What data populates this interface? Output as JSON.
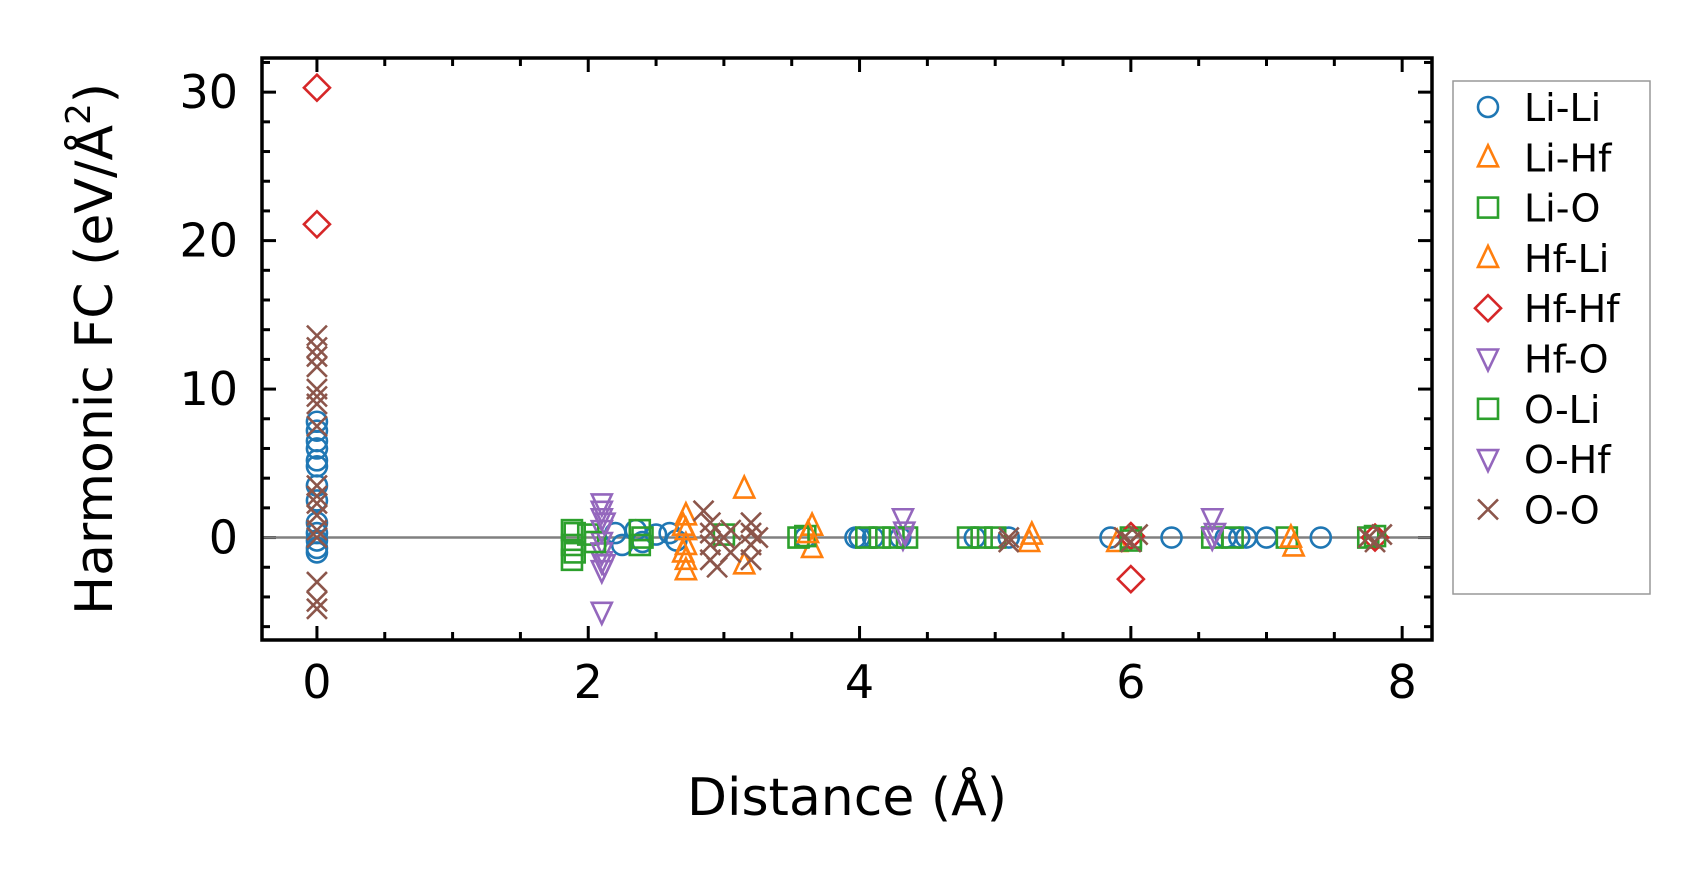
{
  "chart_data": {
    "type": "scatter",
    "title": "",
    "xlabel": "Distance (Å)",
    "ylabel_main": "Harmonic FC (eV/Å",
    "ylabel_sup": "2",
    "ylabel_end": ")",
    "xlim": [
      -0.405,
      8.22
    ],
    "ylim": [
      -6.9,
      32.3
    ],
    "xticks": [
      0,
      2,
      4,
      6,
      8
    ],
    "xtick_labels": [
      "0",
      "2",
      "4",
      "6",
      "8"
    ],
    "yticks": [
      0,
      10,
      20,
      30
    ],
    "ytick_labels": [
      "0",
      "10",
      "20",
      "30"
    ],
    "x_minor_step": 0.5,
    "y_minor_step": 2,
    "zero_line": true,
    "grid": false,
    "legend_position": "right-outside",
    "series": [
      {
        "name": "Li-Li",
        "marker": "circle",
        "color": "#1f77b4",
        "points": [
          [
            0,
            7.8
          ],
          [
            0,
            7.2
          ],
          [
            0,
            6.5
          ],
          [
            0,
            6
          ],
          [
            0,
            5.2
          ],
          [
            0,
            4.8
          ],
          [
            0,
            3.5
          ],
          [
            0,
            2.5
          ],
          [
            0,
            1
          ],
          [
            0,
            0.3
          ],
          [
            0,
            -0.2
          ],
          [
            0,
            -0.7
          ],
          [
            0,
            -1
          ],
          [
            2.2,
            0.3
          ],
          [
            2.25,
            -0.5
          ],
          [
            2.35,
            0.5
          ],
          [
            2.4,
            -0.3
          ],
          [
            2.5,
            0.2
          ],
          [
            2.6,
            0.3
          ],
          [
            2.65,
            -0.2
          ],
          [
            3.6,
            0
          ],
          [
            3.97,
            0
          ],
          [
            4.0,
            0
          ],
          [
            4.1,
            0
          ],
          [
            4.3,
            0
          ],
          [
            4.85,
            0
          ],
          [
            5.1,
            0
          ],
          [
            5.85,
            0
          ],
          [
            6.3,
            0
          ],
          [
            6.7,
            0
          ],
          [
            6.8,
            0
          ],
          [
            6.85,
            0
          ],
          [
            7.0,
            0
          ],
          [
            7.4,
            0
          ]
        ]
      },
      {
        "name": "Li-Hf",
        "marker": "triangle-up",
        "color": "#ff7f0e",
        "points": [
          [
            2.72,
            1.5
          ],
          [
            2.72,
            0.5
          ],
          [
            2.72,
            -0.5
          ],
          [
            2.72,
            -1.5
          ],
          [
            2.72,
            -2.2
          ],
          [
            3.15,
            3.3
          ],
          [
            3.15,
            -1.8
          ],
          [
            3.65,
            0.8
          ],
          [
            3.65,
            -0.7
          ],
          [
            5.25,
            -0.3
          ],
          [
            5.9,
            -0.3
          ],
          [
            7.2,
            -0.6
          ]
        ]
      },
      {
        "name": "Li-O",
        "marker": "square",
        "color": "#2ca02c",
        "points": [
          [
            1.88,
            0.5
          ],
          [
            1.88,
            -0.5
          ],
          [
            1.88,
            -1.5
          ],
          [
            1.9,
            0.3
          ],
          [
            2.0,
            0.2
          ],
          [
            2.38,
            0.5
          ],
          [
            2.38,
            -0.5
          ],
          [
            3.55,
            0
          ],
          [
            3.6,
            0.1
          ],
          [
            4.05,
            0
          ],
          [
            4.15,
            0
          ],
          [
            4.35,
            0
          ],
          [
            4.8,
            0
          ],
          [
            4.9,
            0
          ],
          [
            5.0,
            0
          ],
          [
            6.0,
            0
          ],
          [
            6.6,
            0
          ],
          [
            6.75,
            0
          ],
          [
            7.15,
            0
          ],
          [
            7.75,
            0
          ]
        ]
      },
      {
        "name": "Hf-Li",
        "marker": "triangle-up",
        "color": "#ff7f0e",
        "points": [
          [
            2.7,
            0.8
          ],
          [
            2.7,
            -1
          ],
          [
            3.62,
            0.3
          ],
          [
            5.27,
            0.2
          ],
          [
            7.18,
            0
          ]
        ]
      },
      {
        "name": "Hf-Hf",
        "marker": "diamond",
        "color": "#d62728",
        "points": [
          [
            0,
            30.3
          ],
          [
            0,
            21.1
          ],
          [
            6.0,
            -2.8
          ],
          [
            6.0,
            0.1
          ],
          [
            7.8,
            0
          ]
        ]
      },
      {
        "name": "Hf-O",
        "marker": "triangle-down",
        "color": "#9467bd",
        "points": [
          [
            2.1,
            2.3
          ],
          [
            2.1,
            1.8
          ],
          [
            2.1,
            1.3
          ],
          [
            2.1,
            0.5
          ],
          [
            2.1,
            -0.3
          ],
          [
            2.1,
            -1
          ],
          [
            2.1,
            -1.6
          ],
          [
            2.1,
            -2.2
          ],
          [
            2.1,
            -5
          ],
          [
            4.32,
            1.3
          ],
          [
            4.32,
            0
          ],
          [
            6.6,
            1.3
          ],
          [
            6.6,
            0
          ]
        ]
      },
      {
        "name": "O-Li",
        "marker": "square",
        "color": "#2ca02c",
        "points": [
          [
            1.9,
            -1
          ],
          [
            2.05,
            -0.3
          ],
          [
            2.4,
            0
          ],
          [
            3.0,
            0.2
          ],
          [
            4.25,
            0
          ],
          [
            6.0,
            -0.2
          ],
          [
            7.8,
            0.1
          ]
        ]
      },
      {
        "name": "O-Hf",
        "marker": "triangle-down",
        "color": "#9467bd",
        "points": [
          [
            2.12,
            1
          ],
          [
            2.12,
            -1.8
          ],
          [
            4.33,
            0.4
          ],
          [
            6.62,
            0.3
          ]
        ]
      },
      {
        "name": "O-O",
        "marker": "x",
        "color": "#8c564b",
        "points": [
          [
            0,
            13.6
          ],
          [
            0,
            12.8
          ],
          [
            0,
            12.2
          ],
          [
            0,
            11.5
          ],
          [
            0,
            10
          ],
          [
            0,
            9.5
          ],
          [
            0,
            9
          ],
          [
            0,
            7.5
          ],
          [
            0,
            3.5
          ],
          [
            0,
            2.8
          ],
          [
            0,
            2.3
          ],
          [
            0,
            1.5
          ],
          [
            0,
            0.5
          ],
          [
            0,
            0
          ],
          [
            0,
            -3
          ],
          [
            0,
            -4.3
          ],
          [
            0,
            -4.8
          ],
          [
            2.85,
            1.8
          ],
          [
            2.9,
            1
          ],
          [
            2.9,
            0.3
          ],
          [
            2.9,
            -0.5
          ],
          [
            2.9,
            -1.5
          ],
          [
            2.95,
            -2
          ],
          [
            3.0,
            0
          ],
          [
            3.05,
            0.5
          ],
          [
            3.05,
            -1
          ],
          [
            3.2,
            1
          ],
          [
            3.2,
            0.3
          ],
          [
            3.2,
            -0.5
          ],
          [
            3.2,
            -1.5
          ],
          [
            3.25,
            0
          ],
          [
            5.1,
            0
          ],
          [
            5.1,
            -0.3
          ],
          [
            5.95,
            0
          ],
          [
            6.0,
            -0.3
          ],
          [
            6.05,
            0.2
          ],
          [
            7.75,
            0
          ],
          [
            7.8,
            -0.3
          ],
          [
            7.85,
            0.2
          ]
        ]
      }
    ]
  }
}
